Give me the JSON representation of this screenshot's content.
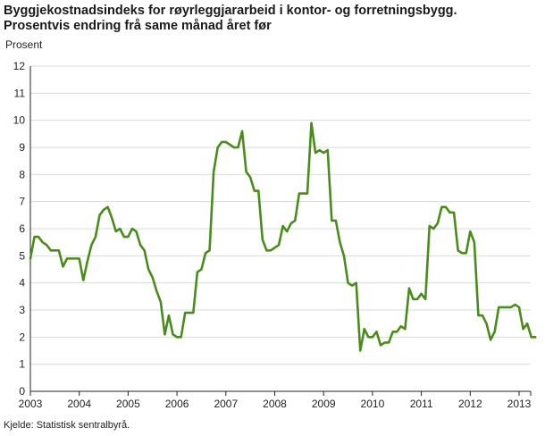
{
  "chart_data": {
    "type": "line",
    "title": "Byggjekostnadsindeks for røyrleggjararbeid i kontor- og forretningsbygg.",
    "subtitle": "Prosentvis endring frå same månad året før",
    "ylabel": "Prosent",
    "xlabel": "",
    "source": "Kjelde: Statistisk sentralbyrå.",
    "ylim": [
      0,
      12
    ],
    "yticks": [
      "0",
      "1",
      "2",
      "3",
      "4",
      "5",
      "6",
      "7",
      "8",
      "9",
      "10",
      "11",
      "12"
    ],
    "xticks": [
      "2003",
      "2004",
      "2005",
      "2006",
      "2007",
      "2008",
      "2009",
      "2010",
      "2011",
      "2012",
      "2013"
    ],
    "grid": true,
    "color": "#4a8c1c",
    "series": [
      {
        "x_start": "2003-01",
        "frequency": "monthly",
        "values": [
          4.9,
          5.7,
          5.7,
          5.5,
          5.4,
          5.2,
          5.2,
          5.2,
          4.6,
          4.9,
          4.9,
          4.9,
          4.9,
          4.1,
          4.8,
          5.4,
          5.7,
          6.5,
          6.7,
          6.8,
          6.4,
          5.9,
          6.0,
          5.7,
          5.7,
          6.0,
          5.9,
          5.4,
          5.2,
          4.5,
          4.2,
          3.7,
          3.3,
          2.1,
          2.8,
          2.1,
          2.0,
          2.0,
          2.9,
          2.9,
          2.9,
          4.4,
          4.5,
          5.1,
          5.2,
          8.1,
          9.0,
          9.2,
          9.2,
          9.1,
          9.0,
          9.0,
          9.6,
          8.1,
          7.9,
          7.4,
          7.4,
          5.6,
          5.2,
          5.2,
          5.3,
          5.4,
          6.1,
          5.9,
          6.2,
          6.3,
          7.3,
          7.3,
          7.3,
          9.9,
          8.8,
          8.9,
          8.8,
          8.9,
          6.3,
          6.3,
          5.5,
          5.0,
          4.0,
          3.9,
          4.0,
          1.5,
          2.3,
          2.0,
          2.0,
          2.2,
          1.7,
          1.8,
          1.8,
          2.2,
          2.2,
          2.4,
          2.3,
          3.8,
          3.4,
          3.4,
          3.6,
          3.4,
          6.1,
          6.0,
          6.2,
          6.8,
          6.8,
          6.6,
          6.6,
          5.2,
          5.1,
          5.1,
          5.9,
          5.5,
          2.8,
          2.8,
          2.5,
          1.9,
          2.2,
          3.1,
          3.1,
          3.1,
          3.1,
          3.2,
          3.1,
          2.3,
          2.5,
          2.0,
          2.0
        ]
      }
    ]
  }
}
